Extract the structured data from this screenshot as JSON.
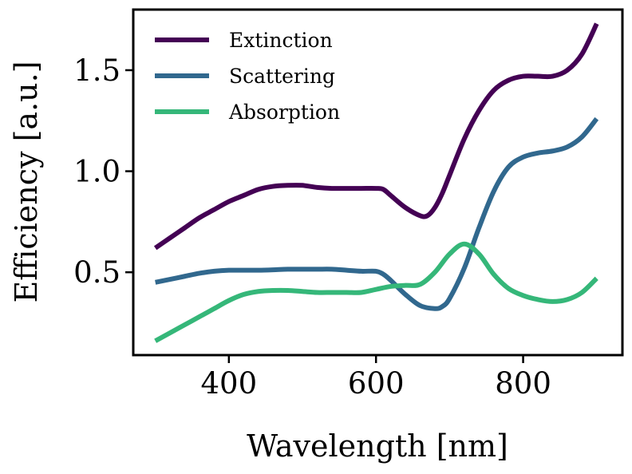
{
  "chart_data": {
    "type": "line",
    "xlabel": "Wavelength [nm]",
    "ylabel": "Efficiency [a.u.]",
    "xlim": [
      270,
      935
    ],
    "ylim": [
      0.09,
      1.8
    ],
    "xticks": [
      400,
      600,
      800
    ],
    "xtick_labels": [
      "400",
      "600",
      "800"
    ],
    "yticks": [
      0.5,
      1.0,
      1.5
    ],
    "ytick_labels": [
      "0.5",
      "1.0",
      "1.5"
    ],
    "grid": false,
    "legend_position": "top-left",
    "series": [
      {
        "name": "Extinction",
        "color": "#440154",
        "x": [
          300,
          320,
          340,
          360,
          380,
          400,
          420,
          440,
          460,
          480,
          500,
          520,
          540,
          560,
          580,
          600,
          610,
          620,
          640,
          660,
          670,
          680,
          690,
          700,
          720,
          740,
          760,
          780,
          800,
          820,
          840,
          860,
          880,
          900
        ],
        "y": [
          0.62,
          0.67,
          0.72,
          0.77,
          0.81,
          0.85,
          0.88,
          0.91,
          0.925,
          0.93,
          0.93,
          0.92,
          0.915,
          0.915,
          0.915,
          0.915,
          0.91,
          0.88,
          0.82,
          0.78,
          0.78,
          0.82,
          0.89,
          0.98,
          1.16,
          1.3,
          1.4,
          1.45,
          1.47,
          1.47,
          1.47,
          1.5,
          1.58,
          1.73
        ]
      },
      {
        "name": "Scattering",
        "color": "#31688e",
        "x": [
          300,
          320,
          340,
          360,
          380,
          400,
          420,
          440,
          460,
          480,
          500,
          520,
          540,
          560,
          580,
          600,
          610,
          620,
          640,
          660,
          680,
          690,
          700,
          720,
          740,
          760,
          780,
          800,
          820,
          840,
          860,
          880,
          900
        ],
        "y": [
          0.45,
          0.465,
          0.48,
          0.495,
          0.505,
          0.51,
          0.51,
          0.51,
          0.512,
          0.515,
          0.515,
          0.515,
          0.515,
          0.51,
          0.505,
          0.505,
          0.49,
          0.46,
          0.39,
          0.335,
          0.32,
          0.33,
          0.37,
          0.52,
          0.72,
          0.9,
          1.02,
          1.07,
          1.09,
          1.1,
          1.12,
          1.17,
          1.26
        ]
      },
      {
        "name": "Absorption",
        "color": "#35b779",
        "x": [
          300,
          320,
          340,
          360,
          380,
          400,
          420,
          440,
          460,
          480,
          500,
          520,
          540,
          560,
          580,
          600,
          620,
          640,
          660,
          680,
          700,
          720,
          740,
          760,
          780,
          800,
          820,
          840,
          860,
          880,
          900
        ],
        "y": [
          0.16,
          0.2,
          0.24,
          0.28,
          0.32,
          0.36,
          0.39,
          0.405,
          0.41,
          0.41,
          0.405,
          0.4,
          0.4,
          0.4,
          0.4,
          0.415,
          0.43,
          0.435,
          0.44,
          0.5,
          0.59,
          0.64,
          0.59,
          0.49,
          0.42,
          0.385,
          0.365,
          0.355,
          0.365,
          0.4,
          0.47
        ]
      }
    ]
  }
}
